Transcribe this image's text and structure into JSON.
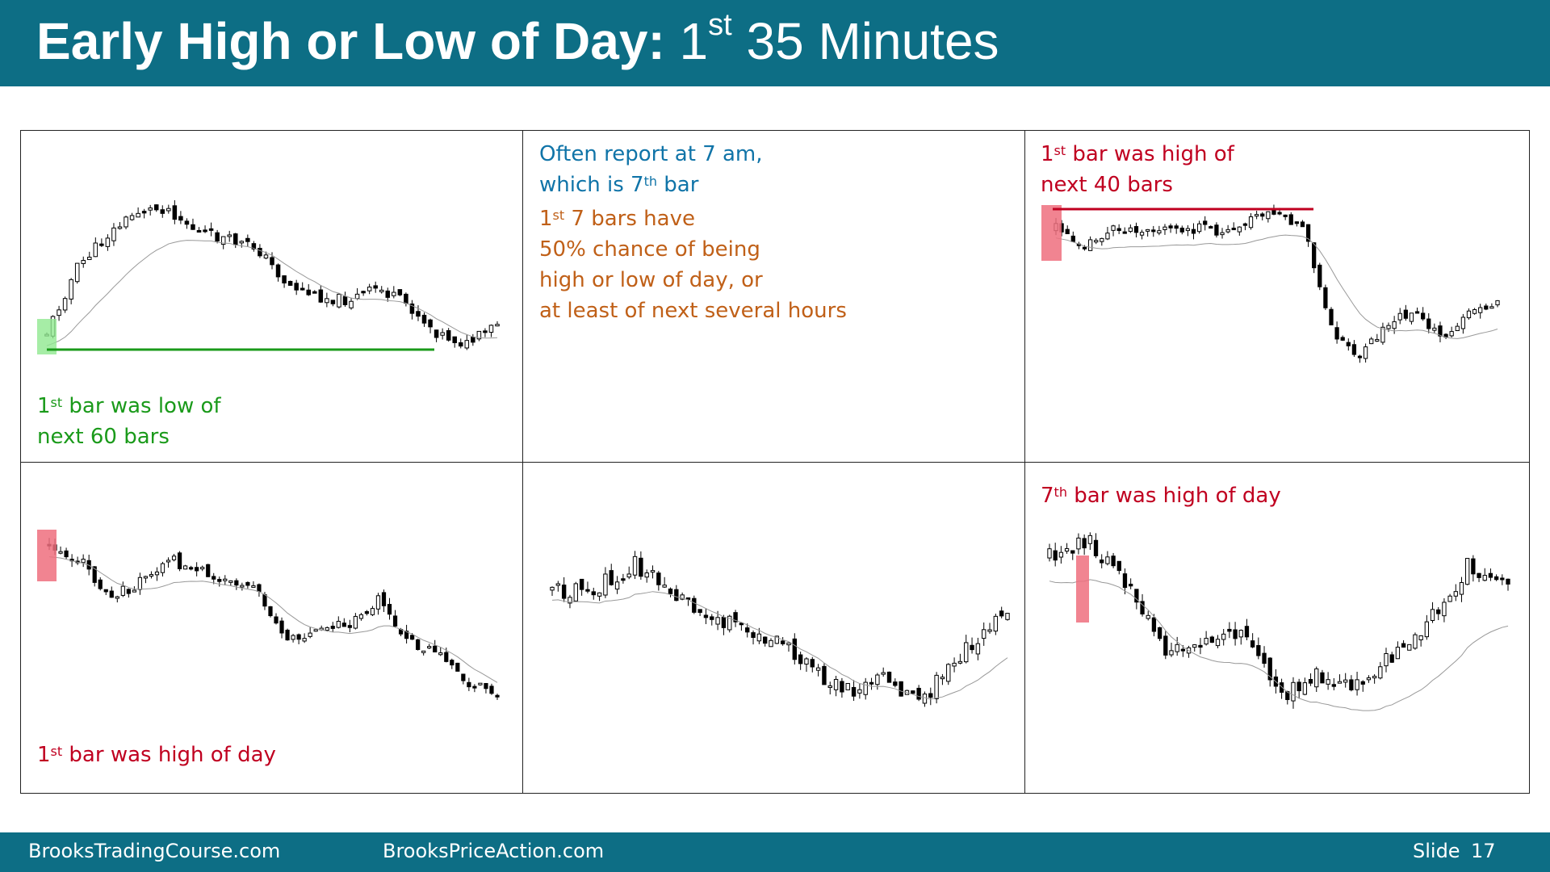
{
  "header": {
    "title_bold": "Early High or Low of Day:",
    "title_num": "1",
    "title_sup": "st",
    "title_rest": "35 Minutes"
  },
  "colors": {
    "header_bg": "#0d6e85",
    "green": "#1a9a1a",
    "red": "#c00020",
    "blue": "#1074a8",
    "orange": "#c06018",
    "highlight_green": "#90e890",
    "highlight_red": "#ee6e7e"
  },
  "panels": {
    "top_left": {
      "cap_sup": "st",
      "cap_line1": "bar was low of",
      "cap_line2": "next 60 bars",
      "cap_num": "1"
    },
    "top_mid": {
      "line1": "Often report at 7 am,",
      "line2_pre": "which is 7",
      "line2_sup": "th",
      "line2_post": "bar",
      "o1_num": "1",
      "o1_sup": "st",
      "o1_rest": "7 bars have",
      "o2": "50% chance of being",
      "o3": "high or low of day, or",
      "o4": "at least of next several hours"
    },
    "top_right": {
      "cap_num": "1",
      "cap_sup": "st",
      "cap_line1": "bar was high of",
      "cap_line2": "next 40 bars"
    },
    "bottom_left": {
      "cap_num": "1",
      "cap_sup": "st",
      "cap_line1": "bar was high of day"
    },
    "bottom_right": {
      "cap_num": "7",
      "cap_sup": "th",
      "cap_line1": "bar was high of day"
    }
  },
  "footer": {
    "left": "BrooksTradingCourse.com",
    "mid": "BrooksPriceAction.com",
    "slide_label": "Slide",
    "slide_number": "17"
  }
}
